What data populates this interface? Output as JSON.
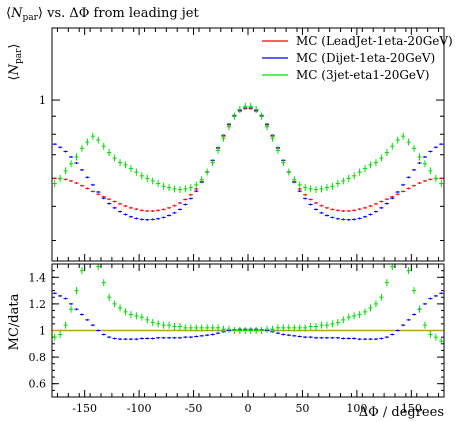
{
  "chart_data": {
    "type": "scatter",
    "title": "⟨N_par⟩ vs. ΔΦ from leading jet",
    "title_parts": {
      "pre": "⟨",
      "var": "N",
      "sub": "par",
      "post": "⟩ vs. ΔΦ from leading jet"
    },
    "ylabel_parts": {
      "pre": "⟨",
      "var": "N",
      "sub": "par",
      "post": "⟩"
    },
    "xlabel": "ΔΦ / degrees",
    "ratio_ylabel": "MC/data",
    "main_ylim": [
      0.35,
      1.6
    ],
    "main_ytick_labels": [
      {
        "value": 1,
        "label": "1"
      }
    ],
    "ratio_ylim": [
      0.5,
      1.5
    ],
    "ratio_ytick_labels": [
      {
        "value": 0.6,
        "label": "0.6"
      },
      {
        "value": 0.8,
        "label": "0.8"
      },
      {
        "value": 1.0,
        "label": "1"
      },
      {
        "value": 1.2,
        "label": "1.2"
      },
      {
        "value": 1.4,
        "label": "1.4"
      }
    ],
    "xlim": [
      -180,
      180
    ],
    "xtick_labels": [
      {
        "value": -150,
        "label": "-150"
      },
      {
        "value": -100,
        "label": "-100"
      },
      {
        "value": -50,
        "label": "-50"
      },
      {
        "value": 0,
        "label": "0"
      },
      {
        "value": 50,
        "label": "50"
      },
      {
        "value": 100,
        "label": "100"
      },
      {
        "value": 150,
        "label": "150"
      }
    ],
    "legend_placement": "top-right",
    "reference_line": {
      "value": 1.0,
      "color": "#b5a11a"
    },
    "x": [
      -177.5,
      -172.5,
      -167.5,
      -162.5,
      -157.5,
      -152.5,
      -147.5,
      -142.5,
      -137.5,
      -132.5,
      -127.5,
      -122.5,
      -117.5,
      -112.5,
      -107.5,
      -102.5,
      -97.5,
      -92.5,
      -87.5,
      -82.5,
      -77.5,
      -72.5,
      -67.5,
      -62.5,
      -57.5,
      -52.5,
      -47.5,
      -42.5,
      -37.5,
      -32.5,
      -27.5,
      -22.5,
      -17.5,
      -12.5,
      -7.5,
      -2.5,
      2.5,
      7.5,
      12.5,
      17.5,
      22.5,
      27.5,
      32.5,
      37.5,
      42.5,
      47.5,
      52.5,
      57.5,
      62.5,
      67.5,
      72.5,
      77.5,
      82.5,
      87.5,
      92.5,
      97.5,
      102.5,
      107.5,
      112.5,
      117.5,
      122.5,
      127.5,
      132.5,
      137.5,
      142.5,
      147.5,
      152.5,
      157.5,
      162.5,
      167.5,
      172.5,
      177.5
    ],
    "series": [
      {
        "name": "MC (LeadJet-1eta-20GeV)",
        "color": "#ff0000",
        "values": [
          0.6,
          0.599,
          0.596,
          0.59,
          0.582,
          0.572,
          0.562,
          0.551,
          0.541,
          0.532,
          0.524,
          0.516,
          0.508,
          0.501,
          0.495,
          0.491,
          0.487,
          0.485,
          0.485,
          0.487,
          0.49,
          0.495,
          0.502,
          0.511,
          0.523,
          0.539,
          0.56,
          0.588,
          0.626,
          0.674,
          0.73,
          0.79,
          0.85,
          0.9,
          0.93,
          0.945,
          0.945,
          0.93,
          0.9,
          0.85,
          0.79,
          0.73,
          0.674,
          0.626,
          0.588,
          0.56,
          0.539,
          0.523,
          0.511,
          0.502,
          0.495,
          0.49,
          0.487,
          0.485,
          0.485,
          0.487,
          0.491,
          0.495,
          0.501,
          0.508,
          0.516,
          0.524,
          0.532,
          0.541,
          0.551,
          0.562,
          0.572,
          0.582,
          0.59,
          0.596,
          0.599,
          0.6
        ],
        "ratio": null
      },
      {
        "name": "MC (Dijet-1eta-20GeV)",
        "color": "#0000ff",
        "values": [
          0.75,
          0.735,
          0.715,
          0.69,
          0.663,
          0.634,
          0.604,
          0.575,
          0.549,
          0.527,
          0.509,
          0.495,
          0.483,
          0.474,
          0.467,
          0.462,
          0.459,
          0.458,
          0.459,
          0.461,
          0.465,
          0.471,
          0.479,
          0.49,
          0.506,
          0.526,
          0.552,
          0.585,
          0.625,
          0.675,
          0.733,
          0.795,
          0.855,
          0.905,
          0.935,
          0.95,
          0.95,
          0.935,
          0.905,
          0.855,
          0.795,
          0.733,
          0.675,
          0.625,
          0.585,
          0.552,
          0.526,
          0.506,
          0.49,
          0.479,
          0.471,
          0.465,
          0.461,
          0.459,
          0.458,
          0.459,
          0.462,
          0.467,
          0.474,
          0.483,
          0.495,
          0.509,
          0.527,
          0.549,
          0.575,
          0.604,
          0.634,
          0.663,
          0.69,
          0.715,
          0.735,
          0.75
        ],
        "ratio": [
          1.28,
          1.26,
          1.24,
          1.2,
          1.16,
          1.12,
          1.08,
          1.04,
          1.0,
          0.97,
          0.95,
          0.94,
          0.935,
          0.935,
          0.935,
          0.935,
          0.94,
          0.94,
          0.94,
          0.945,
          0.945,
          0.945,
          0.945,
          0.945,
          0.95,
          0.95,
          0.955,
          0.96,
          0.965,
          0.97,
          0.98,
          0.99,
          1.0,
          1.005,
          1.01,
          1.01,
          1.01,
          1.01,
          1.005,
          1.0,
          0.99,
          0.98,
          0.97,
          0.965,
          0.96,
          0.955,
          0.95,
          0.95,
          0.945,
          0.945,
          0.945,
          0.945,
          0.945,
          0.94,
          0.94,
          0.94,
          0.935,
          0.935,
          0.935,
          0.935,
          0.94,
          0.95,
          0.97,
          1.0,
          1.04,
          1.08,
          1.12,
          1.16,
          1.2,
          1.24,
          1.26,
          1.28
        ]
      },
      {
        "name": "MC (3jet-eta1-20GeV)",
        "color": "#00dd00",
        "values": [
          0.58,
          0.6,
          0.63,
          0.66,
          0.69,
          0.73,
          0.76,
          0.79,
          0.77,
          0.74,
          0.71,
          0.685,
          0.665,
          0.655,
          0.64,
          0.625,
          0.61,
          0.6,
          0.59,
          0.58,
          0.57,
          0.565,
          0.56,
          0.558,
          0.56,
          0.565,
          0.575,
          0.595,
          0.625,
          0.665,
          0.72,
          0.78,
          0.84,
          0.9,
          0.94,
          0.96,
          0.96,
          0.94,
          0.9,
          0.84,
          0.78,
          0.72,
          0.665,
          0.625,
          0.595,
          0.575,
          0.565,
          0.56,
          0.558,
          0.56,
          0.565,
          0.57,
          0.58,
          0.59,
          0.6,
          0.61,
          0.625,
          0.64,
          0.655,
          0.665,
          0.685,
          0.71,
          0.74,
          0.77,
          0.79,
          0.76,
          0.73,
          0.69,
          0.66,
          0.63,
          0.6,
          0.58
        ],
        "ratio": [
          0.95,
          0.97,
          1.04,
          1.16,
          1.3,
          1.45,
          1.52,
          1.55,
          1.48,
          1.36,
          1.25,
          1.2,
          1.17,
          1.14,
          1.12,
          1.11,
          1.1,
          1.08,
          1.06,
          1.05,
          1.04,
          1.04,
          1.03,
          1.03,
          1.02,
          1.02,
          1.02,
          1.02,
          1.02,
          1.02,
          1.02,
          1.01,
          1.01,
          1.0,
          1.0,
          1.0,
          1.0,
          1.0,
          1.0,
          1.01,
          1.01,
          1.02,
          1.02,
          1.02,
          1.02,
          1.02,
          1.02,
          1.03,
          1.03,
          1.04,
          1.04,
          1.05,
          1.06,
          1.08,
          1.1,
          1.11,
          1.12,
          1.14,
          1.17,
          1.2,
          1.25,
          1.36,
          1.48,
          1.55,
          1.52,
          1.45,
          1.3,
          1.16,
          1.04,
          0.97,
          0.95,
          0.92
        ]
      }
    ]
  }
}
